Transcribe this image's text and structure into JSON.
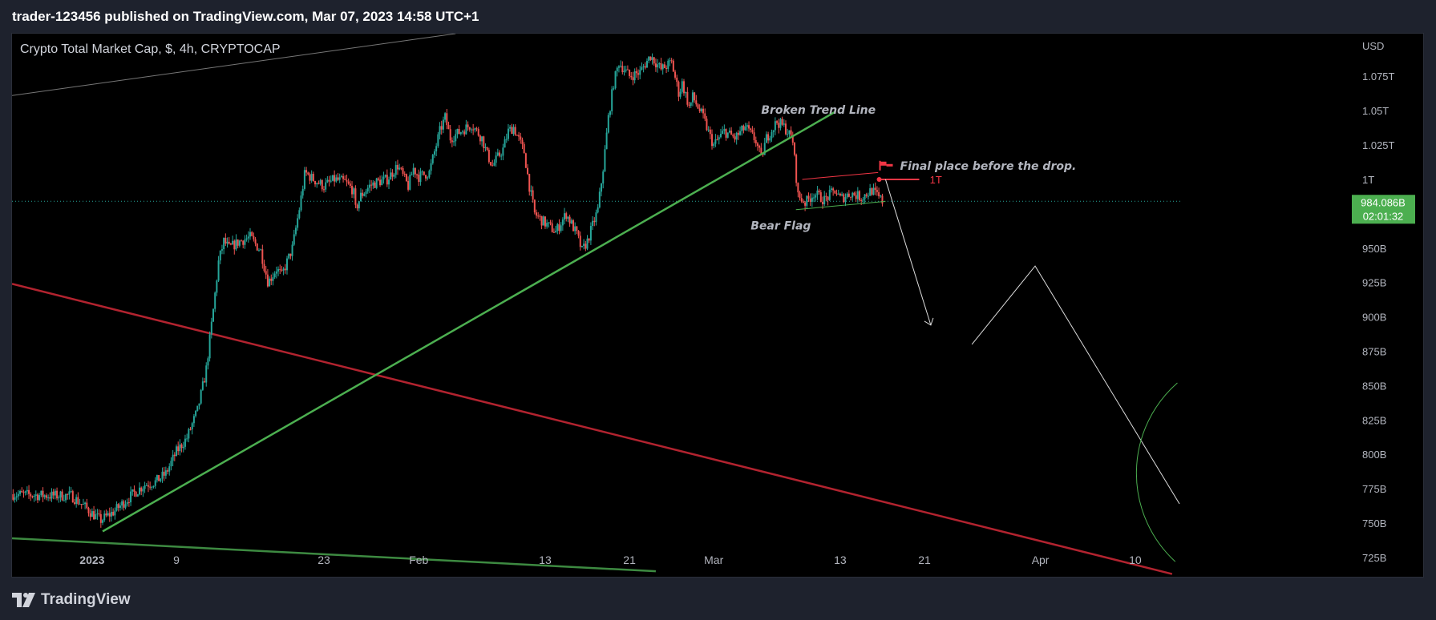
{
  "header": {
    "published": "trader-123456 published on TradingView.com, Mar 07, 2023 14:58 UTC+1"
  },
  "footer": {
    "brand": "TradingView"
  },
  "chart_data": {
    "type": "candlestick",
    "title": "Crypto Total Market Cap, $, 4h, CRYPTOCAP",
    "currency_label": "USD",
    "y_ticks": [
      {
        "v": 725,
        "label": "725B"
      },
      {
        "v": 750,
        "label": "750B"
      },
      {
        "v": 775,
        "label": "775B"
      },
      {
        "v": 800,
        "label": "800B"
      },
      {
        "v": 825,
        "label": "825B"
      },
      {
        "v": 850,
        "label": "850B"
      },
      {
        "v": 875,
        "label": "875B"
      },
      {
        "v": 900,
        "label": "900B"
      },
      {
        "v": 925,
        "label": "925B"
      },
      {
        "v": 950,
        "label": "950B"
      },
      {
        "v": 1000,
        "label": "1T"
      },
      {
        "v": 1025,
        "label": "1.025T"
      },
      {
        "v": 1050,
        "label": "1.05T"
      },
      {
        "v": 1075,
        "label": "1.075T"
      }
    ],
    "ylim": [
      711,
      1106
    ],
    "x_ticks": [
      {
        "d": 0,
        "label": "2023",
        "bold": true
      },
      {
        "d": 8,
        "label": "9"
      },
      {
        "d": 22,
        "label": "23"
      },
      {
        "d": 31,
        "label": "Feb"
      },
      {
        "d": 43,
        "label": "13"
      },
      {
        "d": 51,
        "label": "21"
      },
      {
        "d": 59,
        "label": "Mar"
      },
      {
        "d": 71,
        "label": "13"
      },
      {
        "d": 79,
        "label": "21"
      },
      {
        "d": 90,
        "label": "Apr"
      },
      {
        "d": 99,
        "label": "10"
      }
    ],
    "xlim": [
      -7.6,
      103.5
    ],
    "current_price": {
      "value": 984.086,
      "label": "984.086B",
      "countdown": "02:01:32"
    },
    "price_path": [
      [
        -7.5,
        771
      ],
      [
        -4,
        770
      ],
      [
        -2,
        770
      ],
      [
        -1,
        764
      ],
      [
        0,
        757
      ],
      [
        0.8,
        752
      ],
      [
        2,
        758
      ],
      [
        3,
        765
      ],
      [
        4,
        772
      ],
      [
        5,
        778
      ],
      [
        6,
        780
      ],
      [
        7,
        786
      ],
      [
        8,
        802
      ],
      [
        9,
        812
      ],
      [
        10,
        832
      ],
      [
        10.8,
        860
      ],
      [
        11.5,
        905
      ],
      [
        12,
        940
      ],
      [
        12.5,
        955
      ],
      [
        13,
        950
      ],
      [
        14,
        955
      ],
      [
        15,
        958
      ],
      [
        16,
        948
      ],
      [
        16.7,
        925
      ],
      [
        17.5,
        935
      ],
      [
        18,
        930
      ],
      [
        19,
        950
      ],
      [
        19.7,
        980
      ],
      [
        20.2,
        1005
      ],
      [
        21,
        1000
      ],
      [
        22,
        995
      ],
      [
        23,
        1000
      ],
      [
        24,
        998
      ],
      [
        24.8,
        992
      ],
      [
        25,
        978
      ],
      [
        25.5,
        988
      ],
      [
        26.3,
        995
      ],
      [
        27,
        998
      ],
      [
        28,
        1000
      ],
      [
        29,
        1010
      ],
      [
        30,
        995
      ],
      [
        30.5,
        1008
      ],
      [
        31,
        1002
      ],
      [
        32,
        1005
      ],
      [
        33,
        1035
      ],
      [
        33.5,
        1045
      ],
      [
        34,
        1030
      ],
      [
        35,
        1035
      ],
      [
        36,
        1040
      ],
      [
        37,
        1030
      ],
      [
        37.5,
        1018
      ],
      [
        38,
        1010
      ],
      [
        39,
        1022
      ],
      [
        39.5,
        1035
      ],
      [
        40,
        1038
      ],
      [
        41,
        1020
      ],
      [
        41.5,
        995
      ],
      [
        42,
        975
      ],
      [
        43,
        968
      ],
      [
        44,
        962
      ],
      [
        45,
        975
      ],
      [
        46,
        960
      ],
      [
        46.5,
        948
      ],
      [
        47,
        955
      ],
      [
        48,
        978
      ],
      [
        48.5,
        1008
      ],
      [
        49,
        1045
      ],
      [
        49.5,
        1070
      ],
      [
        50,
        1085
      ],
      [
        51,
        1075
      ],
      [
        52,
        1078
      ],
      [
        53,
        1090
      ],
      [
        54,
        1080
      ],
      [
        55,
        1085
      ],
      [
        55.7,
        1062
      ],
      [
        56,
        1070
      ],
      [
        56.7,
        1052
      ],
      [
        57,
        1060
      ],
      [
        58,
        1045
      ],
      [
        58.7,
        1030
      ],
      [
        59,
        1025
      ],
      [
        60,
        1035
      ],
      [
        61,
        1030
      ],
      [
        62,
        1038
      ],
      [
        63,
        1028
      ],
      [
        63.5,
        1015
      ],
      [
        64,
        1030
      ],
      [
        65,
        1042
      ],
      [
        65.7,
        1038
      ],
      [
        66,
        1035
      ],
      [
        66.5,
        1028
      ],
      [
        67,
        988
      ],
      [
        67.7,
        983
      ],
      [
        68.5,
        990
      ],
      [
        69.5,
        985
      ],
      [
        70.5,
        992
      ],
      [
        71,
        986
      ],
      [
        72,
        990
      ],
      [
        73,
        987
      ],
      [
        74,
        992
      ],
      [
        74.5,
        988
      ],
      [
        75,
        984
      ]
    ],
    "annotations": {
      "broken_trend_label": "Broken Trend Line",
      "bear_flag_label": "Bear Flag",
      "final_place_label": "Final place before the drop.",
      "one_t_label": "1T"
    },
    "colors": {
      "up": "#26a69a",
      "down": "#ef5350",
      "trend_green": "#4caf50",
      "dark_green": "#3d8a41",
      "red_line": "#b2232f",
      "white": "#dddddd",
      "price_tag": "#4caf50",
      "flag_red": "#f23645"
    }
  }
}
